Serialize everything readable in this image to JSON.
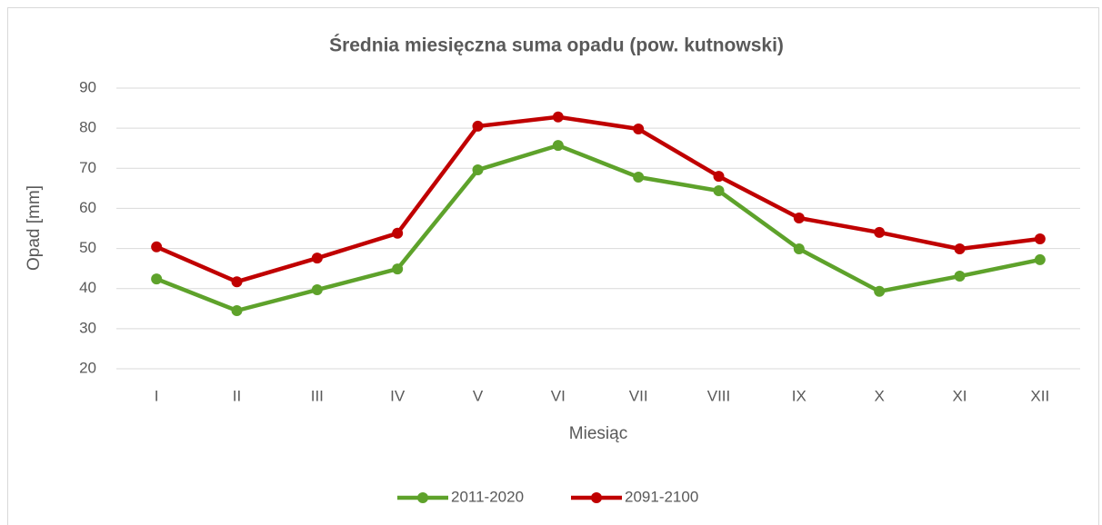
{
  "chart_data": {
    "type": "line",
    "title": "Średnia miesięczna suma opadu (pow. kutnowski)",
    "x_label": "Miesiąc",
    "y_label": "Opad [mm]",
    "categories": [
      "I",
      "II",
      "III",
      "IV",
      "V",
      "VI",
      "VII",
      "VIII",
      "IX",
      "X",
      "XI",
      "XII"
    ],
    "series": [
      {
        "name": "2011-2020",
        "color": "#5ea22b",
        "values": [
          42.4,
          34.5,
          39.7,
          44.9,
          69.6,
          75.7,
          67.8,
          64.4,
          49.9,
          39.3,
          43.1,
          47.2
        ]
      },
      {
        "name": "2091-2100",
        "color": "#c00000",
        "values": [
          50.4,
          41.7,
          47.6,
          53.8,
          80.5,
          82.8,
          79.8,
          68.0,
          57.6,
          54.0,
          49.9,
          52.4
        ]
      }
    ],
    "ylim": [
      20,
      90
    ],
    "yticks": [
      20,
      30,
      40,
      50,
      60,
      70,
      80,
      90
    ],
    "grid": true,
    "legend": "bottom"
  }
}
